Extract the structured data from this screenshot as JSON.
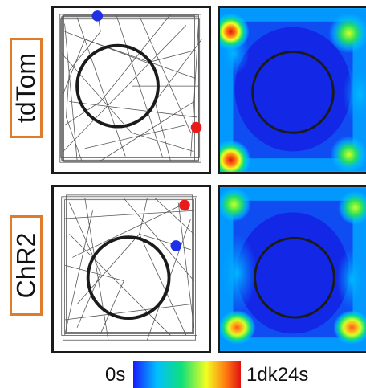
{
  "rows": [
    {
      "label": "tdTom",
      "start_marker": {
        "color": "#1f2fe6"
      },
      "end_marker": {
        "color": "#e81b1b"
      }
    },
    {
      "label": "ChR2",
      "start_marker": {
        "color": "#1f2fe6"
      },
      "end_marker": {
        "color": "#e81b1b"
      }
    }
  ],
  "colorbar": {
    "min_label": "0s",
    "max_label": "1dk24s",
    "colors": [
      "#1a1aff",
      "#00c0ff",
      "#11e07a",
      "#f2ff20",
      "#ff7a12",
      "#e01212"
    ]
  }
}
